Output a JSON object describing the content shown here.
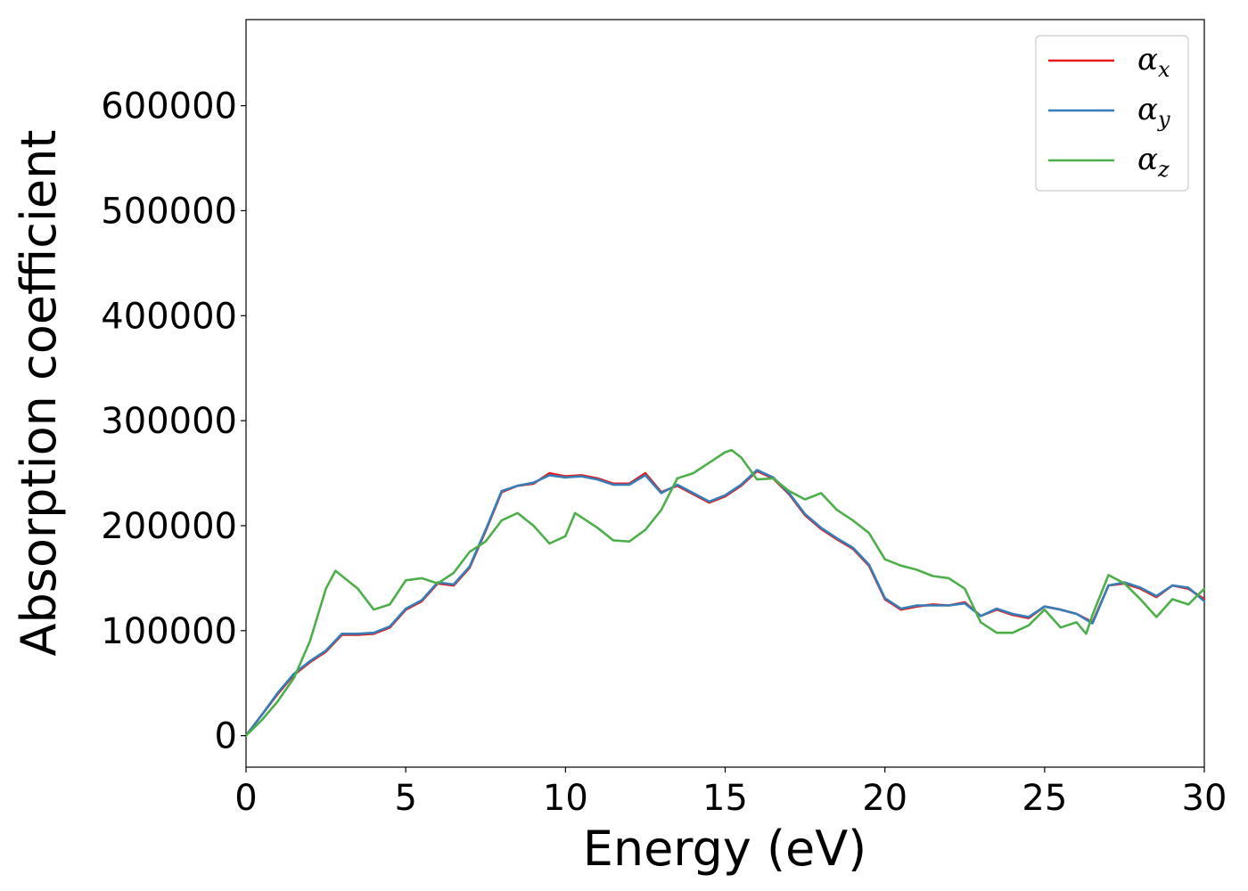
{
  "chart_data": {
    "type": "line",
    "title": "",
    "xlabel": "Energy (eV)",
    "ylabel": "Absorption coefficient",
    "xlim": [
      0,
      30
    ],
    "ylim": [
      -30000,
      682000
    ],
    "xticks": [
      0,
      5,
      10,
      15,
      20,
      25,
      30
    ],
    "yticks": [
      0,
      100000,
      200000,
      300000,
      400000,
      500000,
      600000
    ],
    "grid": false,
    "legend_position": "top-right",
    "series": [
      {
        "name": "α",
        "name_sub": "x",
        "color": "#e41a1c",
        "x": [
          0,
          0.5,
          1,
          1.5,
          2,
          2.5,
          3,
          3.5,
          4,
          4.5,
          5,
          5.5,
          6,
          6.5,
          7,
          7.5,
          8,
          8.5,
          9,
          9.5,
          10,
          10.5,
          11,
          11.5,
          12,
          12.5,
          13,
          13.5,
          14,
          14.5,
          15,
          15.5,
          16,
          16.5,
          17,
          17.5,
          18,
          18.5,
          19,
          19.5,
          20,
          20.5,
          21,
          21.5,
          22,
          22.5,
          23,
          23.5,
          24,
          24.5,
          25,
          25.5,
          26,
          26.5,
          27,
          27.5,
          28,
          28.5,
          29,
          29.5,
          30
        ],
        "values": [
          0,
          20000,
          40000,
          58000,
          70000,
          80000,
          96000,
          96000,
          97000,
          103000,
          120000,
          128000,
          145000,
          143000,
          160000,
          195000,
          232000,
          238000,
          240000,
          250000,
          247000,
          248000,
          245000,
          240000,
          240000,
          250000,
          232000,
          238000,
          230000,
          222000,
          228000,
          238000,
          252000,
          245000,
          230000,
          210000,
          197000,
          187000,
          178000,
          162000,
          130000,
          120000,
          123000,
          125000,
          124000,
          127000,
          114000,
          120000,
          115000,
          112000,
          123000,
          120000,
          116000,
          108000,
          143000,
          145000,
          140000,
          132000,
          143000,
          140000,
          130000
        ]
      },
      {
        "name": "α",
        "name_sub": "y",
        "color": "#377eb8",
        "x": [
          0,
          0.5,
          1,
          1.5,
          2,
          2.5,
          3,
          3.5,
          4,
          4.5,
          5,
          5.5,
          6,
          6.5,
          7,
          7.5,
          8,
          8.5,
          9,
          9.5,
          10,
          10.5,
          11,
          11.5,
          12,
          12.5,
          13,
          13.5,
          14,
          14.5,
          15,
          15.5,
          16,
          16.5,
          17,
          17.5,
          18,
          18.5,
          19,
          19.5,
          20,
          20.5,
          21,
          21.5,
          22,
          22.5,
          23,
          23.5,
          24,
          24.5,
          25,
          25.5,
          26,
          26.5,
          27,
          27.5,
          28,
          28.5,
          29,
          29.5,
          30
        ],
        "values": [
          0,
          20000,
          41000,
          59000,
          71000,
          81000,
          97000,
          97000,
          98000,
          104000,
          121000,
          129000,
          146000,
          144000,
          161000,
          196000,
          233000,
          238000,
          241000,
          248000,
          246000,
          247000,
          244000,
          239000,
          239000,
          248000,
          231000,
          239000,
          231000,
          223000,
          229000,
          239000,
          253000,
          246000,
          231000,
          211000,
          198000,
          188000,
          179000,
          163000,
          131000,
          121000,
          124000,
          124000,
          124000,
          126000,
          114000,
          121000,
          116000,
          113000,
          123000,
          120000,
          116000,
          107000,
          143000,
          146000,
          141000,
          133000,
          143000,
          141000,
          128000
        ]
      },
      {
        "name": "α",
        "name_sub": "z",
        "color": "#4daf4a",
        "x": [
          0,
          0.5,
          1,
          1.5,
          2,
          2.5,
          2.8,
          3.5,
          4,
          4.5,
          5,
          5.5,
          6,
          6.5,
          7,
          7.5,
          8,
          8.5,
          9,
          9.5,
          10,
          10.3,
          11,
          11.5,
          12,
          12.5,
          13,
          13.5,
          14,
          14.5,
          15,
          15.2,
          15.5,
          16,
          16.5,
          17,
          17.5,
          18,
          18.5,
          19,
          19.5,
          20,
          20.5,
          21,
          21.5,
          22,
          22.5,
          23,
          23.5,
          24,
          24.5,
          25,
          25.5,
          26,
          26.3,
          26.5,
          27,
          27.5,
          28,
          28.5,
          29,
          29.5,
          30
        ],
        "values": [
          0,
          15000,
          33000,
          55000,
          90000,
          140000,
          157000,
          140000,
          120000,
          125000,
          148000,
          150000,
          145000,
          155000,
          175000,
          185000,
          205000,
          212000,
          200000,
          183000,
          190000,
          212000,
          198000,
          186000,
          185000,
          196000,
          215000,
          245000,
          250000,
          260000,
          270000,
          272000,
          265000,
          244000,
          245000,
          233000,
          225000,
          231000,
          215000,
          205000,
          193000,
          168000,
          162000,
          158000,
          152000,
          150000,
          140000,
          108000,
          98000,
          98000,
          105000,
          120000,
          103000,
          108000,
          97000,
          115000,
          153000,
          145000,
          130000,
          113000,
          130000,
          125000,
          140000
        ]
      }
    ]
  }
}
